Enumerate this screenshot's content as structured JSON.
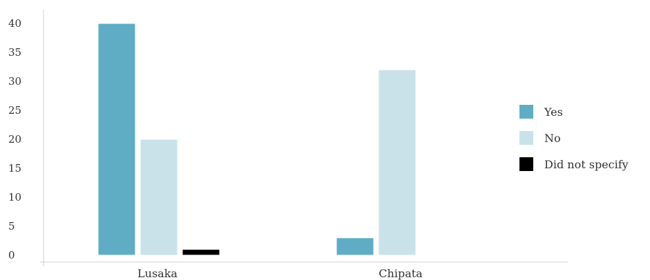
{
  "chart_data": {
    "type": "bar",
    "categories": [
      "Lusaka",
      "Chipata"
    ],
    "series": [
      {
        "name": "Yes",
        "values": [
          40,
          3
        ],
        "color": "#5fadc4"
      },
      {
        "name": "No",
        "values": [
          20,
          32
        ],
        "color": "#c9e2ea"
      },
      {
        "name": "Did not specify",
        "values": [
          1,
          0
        ],
        "color": "#000000"
      }
    ],
    "yticks": [
      0,
      5,
      10,
      15,
      20,
      25,
      30,
      35,
      40
    ],
    "ylim": [
      0,
      40
    ],
    "title": "",
    "xlabel": "",
    "ylabel": "",
    "grid": false,
    "legend": "right"
  }
}
